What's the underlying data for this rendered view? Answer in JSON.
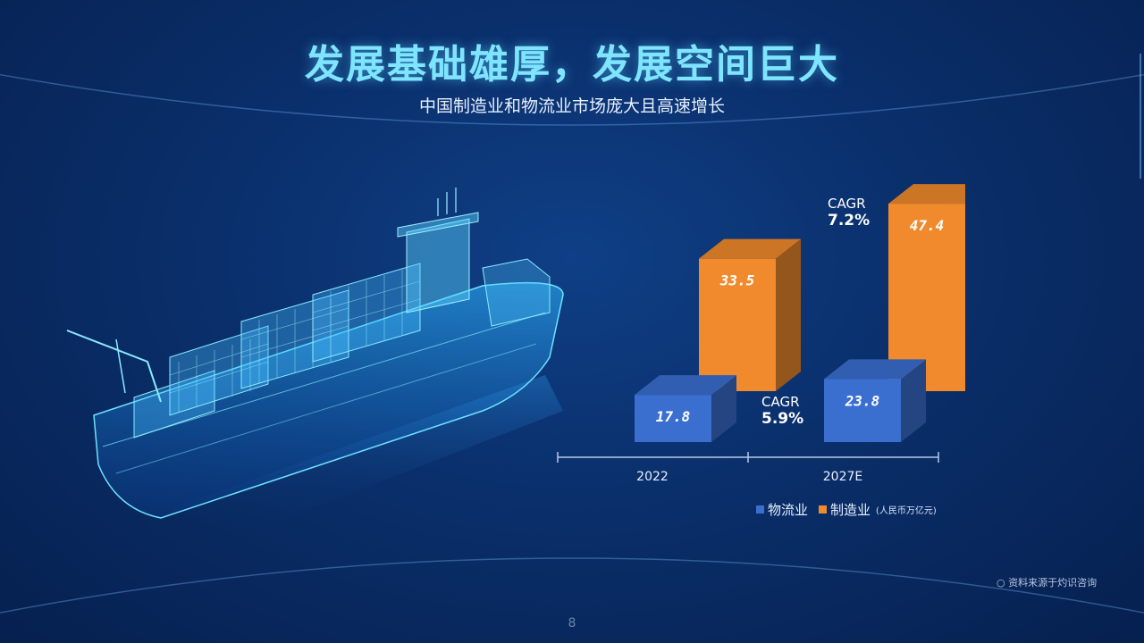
{
  "header": {
    "title": "发展基础雄厚，发展空间巨大",
    "subtitle": "中国制造业和物流业市场庞大且高速增长"
  },
  "chart_data": {
    "type": "bar",
    "categories": [
      "2022",
      "2027E"
    ],
    "series": [
      {
        "name": "物流业",
        "values": [
          17.8,
          23.8
        ],
        "color": "#3a6fd0"
      },
      {
        "name": "制造业",
        "values": [
          33.5,
          47.4
        ],
        "color": "#f08a2c"
      }
    ],
    "value_labels": [
      [
        "17.8",
        "23.8"
      ],
      [
        "33.5",
        "47.4"
      ]
    ],
    "unit": "(人民币万亿元)",
    "ylim": [
      0,
      50
    ],
    "cagr": [
      {
        "series": "制造业",
        "label": "CAGR",
        "value": "7.2%"
      },
      {
        "series": "物流业",
        "label": "CAGR",
        "value": "5.9%"
      }
    ]
  },
  "legend": {
    "items": [
      {
        "name": "物流业",
        "color": "#3a6fd0"
      },
      {
        "name": "制造业",
        "color": "#f08a2c"
      }
    ],
    "unit": "(人民币万亿元)"
  },
  "footer": {
    "source": "○ 资料来源于灼识咨询",
    "page_number": "8"
  }
}
